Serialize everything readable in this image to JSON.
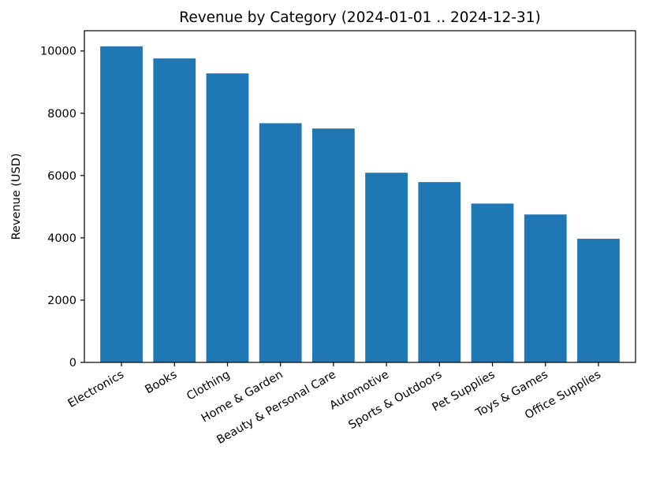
{
  "chart_data": {
    "type": "bar",
    "title": "Revenue by Category (2024-01-01 .. 2024-12-31)",
    "xlabel": "",
    "ylabel": "Revenue (USD)",
    "categories": [
      "Electronics",
      "Books",
      "Clothing",
      "Home & Garden",
      "Beauty & Personal Care",
      "Automotive",
      "Sports & Outdoors",
      "Pet Supplies",
      "Toys & Games",
      "Office Supplies"
    ],
    "values": [
      10150,
      9760,
      9280,
      7680,
      7510,
      6090,
      5790,
      5100,
      4750,
      3970
    ],
    "ylim": [
      0,
      10650
    ],
    "yticks": [
      0,
      2000,
      4000,
      6000,
      8000,
      10000
    ],
    "grid": false,
    "bar_color": "#1f77b4"
  }
}
